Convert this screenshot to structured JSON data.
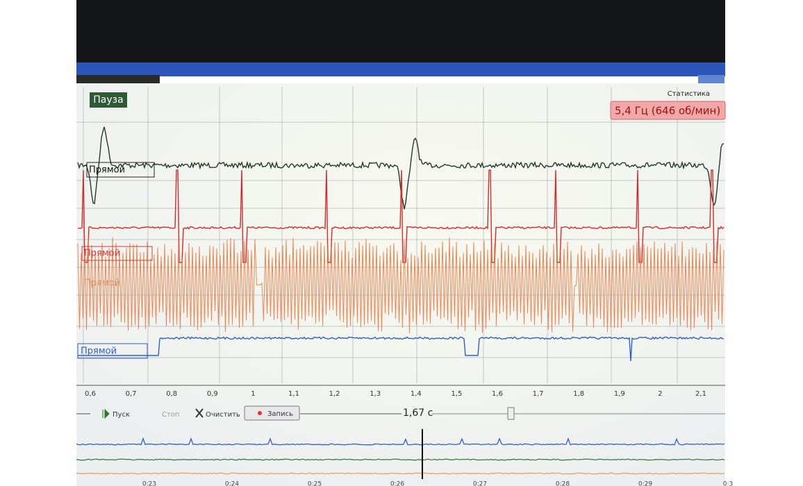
{
  "window": {
    "pause_button": "Пауза",
    "statistics_menu": "Статистика",
    "frequency": "5,4 Гц (646 об/мин)"
  },
  "channels": [
    "Прямой",
    "Прямой",
    "Прямой",
    "Прямой"
  ],
  "time_axis": [
    "0,6",
    "0,7",
    "0,8",
    "0,9",
    "1",
    "1,1",
    "1,2",
    "1,3",
    "1,4",
    "1,5",
    "1,6",
    "1,7",
    "1,8",
    "1,9",
    "2",
    "2,1"
  ],
  "toolbar": {
    "start": "Пуск",
    "stop": "Стоп",
    "clear": "Очистить",
    "record": "Запись",
    "window_length": "1,67 с"
  },
  "overview_axis": [
    "0:23",
    "0:24",
    "0:25",
    "0:26",
    "0:27",
    "0:28",
    "0:29",
    "0:3"
  ]
}
